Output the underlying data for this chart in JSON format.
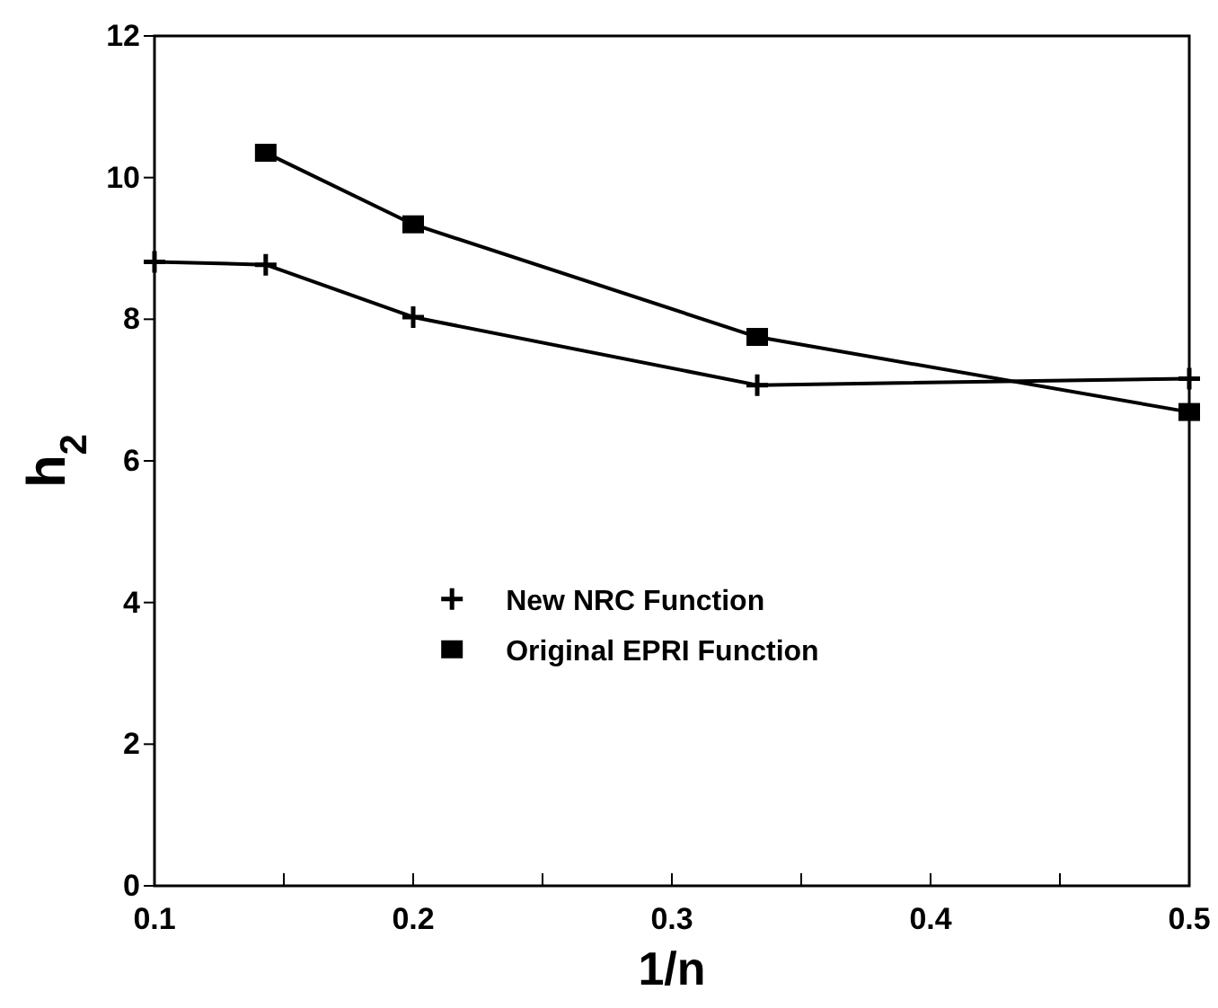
{
  "chart_data": {
    "type": "line",
    "xlabel": "1/n",
    "ylabel": "h$_{2}$",
    "xlim": [
      0.1,
      0.5
    ],
    "xticks": [
      0.1,
      {
        "value": 0.15,
        "label": null
      },
      0.2,
      {
        "value": 0.25,
        "label": null
      },
      0.3,
      {
        "value": 0.35,
        "label": null
      },
      0.4,
      {
        "value": 0.45,
        "label": null
      },
      0.5
    ],
    "ylim": [
      0,
      12
    ],
    "yticks": [
      0,
      2,
      4,
      6,
      8,
      10,
      12
    ],
    "grid": false,
    "legend": "center",
    "line_style": "solid",
    "series": [
      {
        "name": "New NRC Function",
        "color": "#000000",
        "marker": "cross",
        "x": [
          0.1,
          0.143,
          0.2,
          0.333,
          0.5
        ],
        "values": [
          8.81,
          8.77,
          8.03,
          7.07,
          7.16
        ]
      },
      {
        "name": "Original EPRI Function",
        "color": "#000000",
        "marker": "square",
        "x": [
          0.143,
          0.2,
          0.333,
          0.5
        ],
        "values": [
          10.35,
          9.34,
          7.75,
          6.69
        ]
      }
    ]
  }
}
